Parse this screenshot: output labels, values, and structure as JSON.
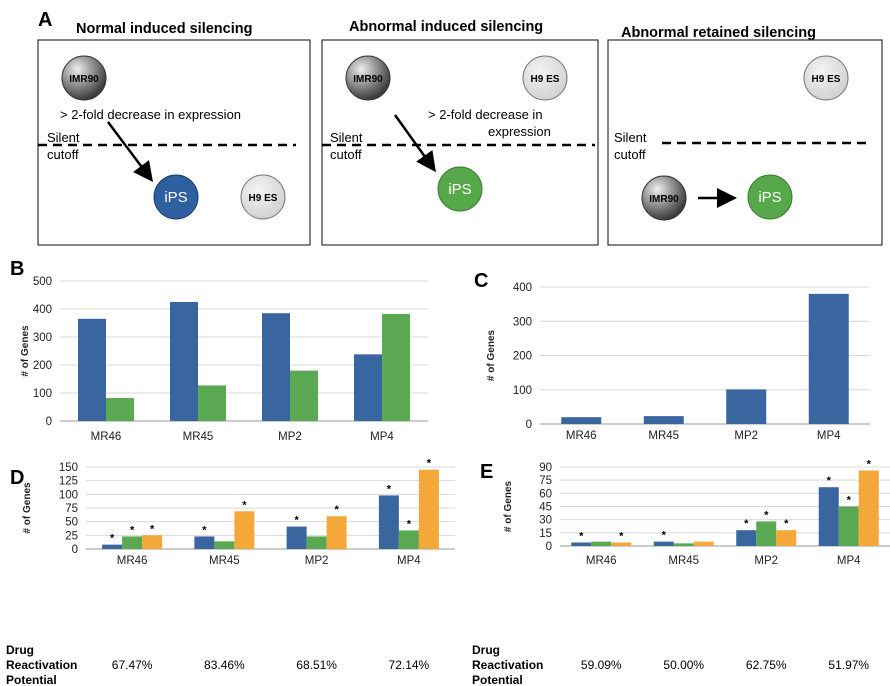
{
  "panel_a": {
    "letter": "A",
    "boxes": [
      {
        "title": "Normal induced silencing",
        "note": "> 2-fold decrease in expression",
        "cutoff_line1": "Silent",
        "cutoff_line2": "cutoff",
        "from": "IMR90",
        "reference": "H9 ES",
        "target": "iPS",
        "target_color": "#2e5f9e"
      },
      {
        "title": "Abnormal induced silencing",
        "note_line1": "> 2-fold decrease in",
        "note_line2": "expression",
        "cutoff_line1": "Silent",
        "cutoff_line2": "cutoff",
        "from": "IMR90",
        "reference": "H9 ES",
        "target": "iPS",
        "target_color": "#57a84a"
      },
      {
        "title": "Abnormal retained silencing",
        "cutoff_line1": "Silent",
        "cutoff_line2": "cutoff",
        "from": "IMR90",
        "reference": "H9 ES",
        "target": "iPS",
        "target_color": "#57a84a"
      }
    ]
  },
  "colors": {
    "blue": "#3a66a0",
    "green": "#5aa852",
    "orange": "#f5a83a"
  },
  "row_labels": {
    "drug": "Drug",
    "reactivation": "Reactivation",
    "potential": "Potential"
  },
  "chart_data": [
    {
      "panel": "B",
      "type": "bar",
      "categories": [
        "MR46",
        "MR45",
        "MP2",
        "MP4"
      ],
      "series": [
        {
          "values": [
            365,
            425,
            385,
            238
          ],
          "color": "#3a66a0"
        },
        {
          "values": [
            82,
            127,
            180,
            382
          ],
          "color": "#5aa852"
        }
      ],
      "ylabel": "# of Genes",
      "ylim": [
        0,
        500
      ],
      "yticks": [
        0,
        100,
        200,
        300,
        400,
        500
      ],
      "grid": true
    },
    {
      "panel": "C",
      "type": "bar",
      "categories": [
        "MR46",
        "MR45",
        "MP2",
        "MP4"
      ],
      "series": [
        {
          "values": [
            20,
            23,
            101,
            380
          ],
          "color": "#3a66a0"
        }
      ],
      "ylabel": "# of Genes",
      "ylim": [
        0,
        400
      ],
      "yticks": [
        0,
        100,
        200,
        300,
        400
      ],
      "grid": true
    },
    {
      "panel": "D",
      "type": "bar",
      "categories": [
        "MR46",
        "MR45",
        "MP2",
        "MP4"
      ],
      "series": [
        {
          "values": [
            8,
            23,
            41,
            98
          ],
          "color": "#3a66a0"
        },
        {
          "values": [
            23,
            14,
            23,
            34
          ],
          "color": "#5aa852"
        },
        {
          "values": [
            25,
            69,
            60,
            145
          ],
          "color": "#f5a83a"
        }
      ],
      "significance": [
        [
          true,
          true,
          true,
          true
        ],
        [
          true,
          false,
          false,
          true
        ],
        [
          true,
          true,
          true,
          true
        ]
      ],
      "star_symbol": "*",
      "ylabel": "# of Genes",
      "ylim": [
        0,
        150
      ],
      "yticks": [
        0,
        25,
        50,
        75,
        100,
        125,
        150
      ],
      "grid": true,
      "reactivation_potential": [
        "67.47%",
        "83.46%",
        "68.51%",
        "72.14%"
      ]
    },
    {
      "panel": "E",
      "type": "bar",
      "categories": [
        "MR46",
        "MR45",
        "MP2",
        "MP4"
      ],
      "series": [
        {
          "values": [
            4,
            5,
            18,
            67
          ],
          "color": "#3a66a0"
        },
        {
          "values": [
            5,
            3,
            28,
            45
          ],
          "color": "#5aa852"
        },
        {
          "values": [
            4,
            5,
            18,
            86
          ],
          "color": "#f5a83a"
        }
      ],
      "significance": [
        [
          true,
          true,
          true,
          true
        ],
        [
          false,
          false,
          true,
          true
        ],
        [
          true,
          false,
          true,
          true
        ]
      ],
      "star_symbol": "*",
      "ylabel": "# of Genes",
      "ylim": [
        0,
        90
      ],
      "yticks": [
        0,
        15,
        30,
        45,
        60,
        75,
        90
      ],
      "grid": true,
      "reactivation_potential": [
        "59.09%",
        "50.00%",
        "62.75%",
        "51.97%"
      ]
    }
  ]
}
